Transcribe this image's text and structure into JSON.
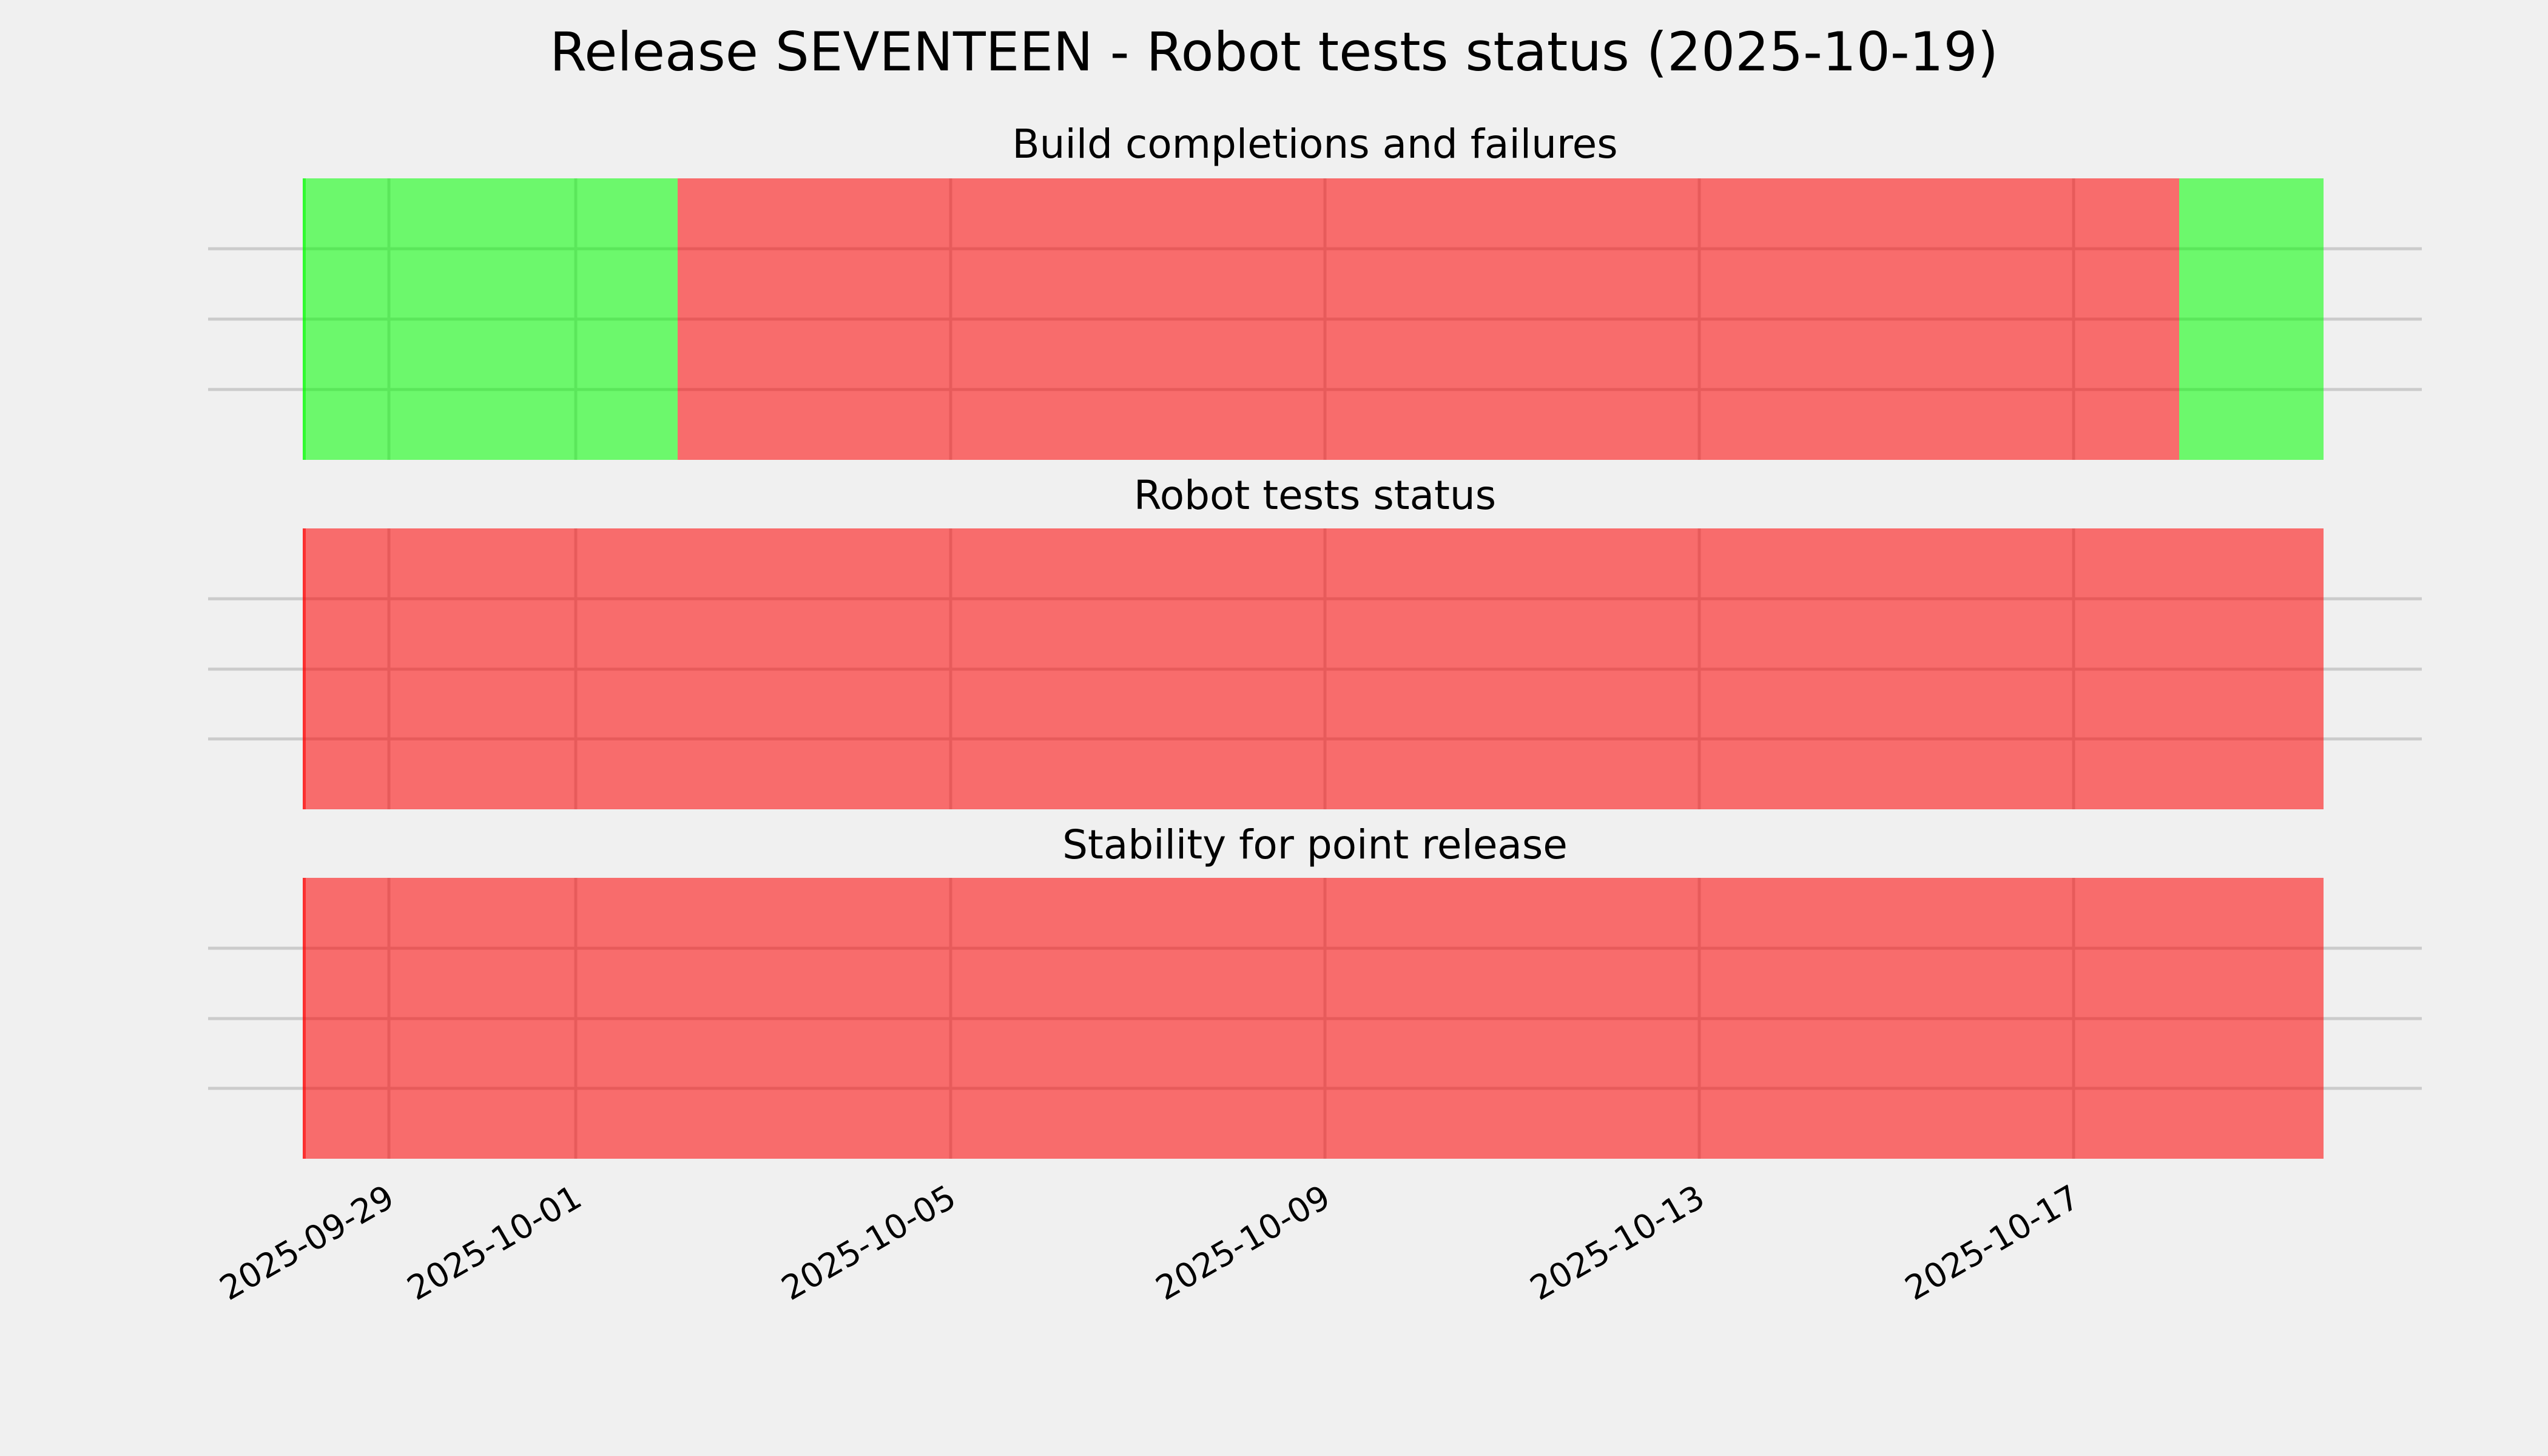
{
  "figure": {
    "title": "Release SEVENTEEN - Robot tests status (2025-10-19)",
    "background_color": "#f0f0f0",
    "grid_color": "#cbcbcb",
    "text_color": "#000000",
    "pass_color": "rgba(0,255,0,0.55)",
    "fail_color": "rgba(255,0,0,0.55)"
  },
  "x_axis": {
    "range_start": "2025-09-27T01:40:00",
    "range_end": "2025-10-20T17:15:00",
    "ticks": [
      {
        "date": "2025-09-29T00:00:00",
        "label": "2025-09-29"
      },
      {
        "date": "2025-10-01T00:00:00",
        "label": "2025-10-01"
      },
      {
        "date": "2025-10-05T00:00:00",
        "label": "2025-10-05"
      },
      {
        "date": "2025-10-09T00:00:00",
        "label": "2025-10-09"
      },
      {
        "date": "2025-10-13T00:00:00",
        "label": "2025-10-13"
      },
      {
        "date": "2025-10-17T00:00:00",
        "label": "2025-10-17"
      }
    ]
  },
  "subplots": [
    {
      "id": "builds",
      "title": "Build completions and failures",
      "segments": [
        {
          "status": "pass",
          "start": "2025-09-28T02:00:00",
          "end": "2025-10-02T02:00:00"
        },
        {
          "status": "fail",
          "start": "2025-10-02T02:00:00",
          "end": "2025-10-18T03:00:00"
        },
        {
          "status": "pass",
          "start": "2025-10-18T03:00:00",
          "end": "2025-10-19T16:00:00"
        }
      ]
    },
    {
      "id": "robot-tests",
      "title": "Robot tests status",
      "segments": [
        {
          "status": "fail",
          "start": "2025-09-28T02:00:00",
          "end": "2025-10-19T16:00:00"
        }
      ]
    },
    {
      "id": "stability",
      "title": "Stability for point release",
      "segments": [
        {
          "status": "fail",
          "start": "2025-09-28T02:00:00",
          "end": "2025-10-19T16:00:00"
        }
      ]
    }
  ],
  "chart_data": {
    "type": "timeline",
    "title": "Release SEVENTEEN - Robot tests status (2025-10-19)",
    "x_range": [
      "2025-09-27",
      "2025-10-20"
    ],
    "x_tick_labels": [
      "2025-09-29",
      "2025-10-01",
      "2025-10-05",
      "2025-10-09",
      "2025-10-13",
      "2025-10-17"
    ],
    "x_tick_label_rotation_deg": 30,
    "grid": true,
    "legend": false,
    "y_axis_labels": false,
    "status_colors": {
      "pass": "green",
      "fail": "red"
    },
    "subplots": [
      {
        "title": "Build completions and failures",
        "segments": [
          {
            "status": "pass",
            "from": "2025-09-28",
            "to": "2025-10-02"
          },
          {
            "status": "fail",
            "from": "2025-10-02",
            "to": "2025-10-18"
          },
          {
            "status": "pass",
            "from": "2025-10-18",
            "to": "2025-10-19"
          }
        ]
      },
      {
        "title": "Robot tests status",
        "segments": [
          {
            "status": "fail",
            "from": "2025-09-28",
            "to": "2025-10-19"
          }
        ]
      },
      {
        "title": "Stability for point release",
        "segments": [
          {
            "status": "fail",
            "from": "2025-09-28",
            "to": "2025-10-19"
          }
        ]
      }
    ]
  }
}
